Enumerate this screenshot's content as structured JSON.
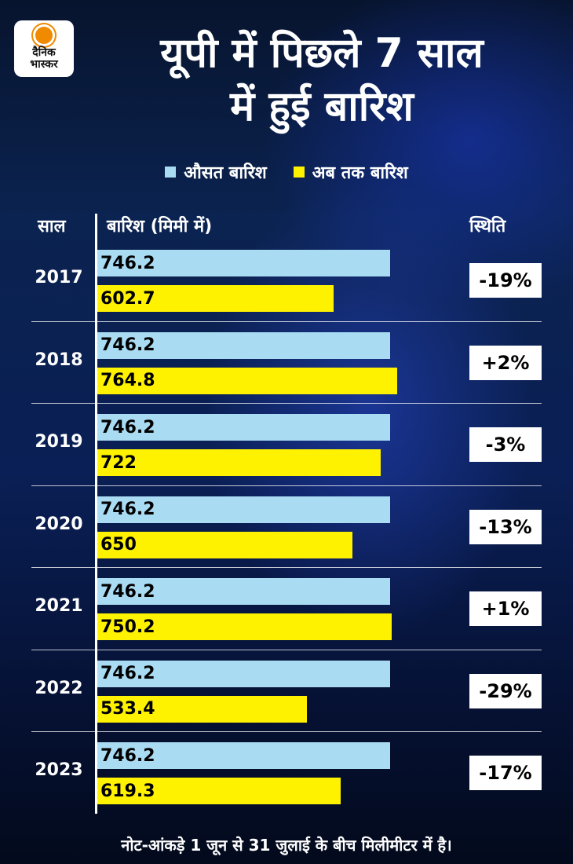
{
  "logo": {
    "line1": "दैनिक",
    "line2": "भास्कर"
  },
  "title_line1": "यूपी में पिछले 7 साल",
  "title_line2": "में हुई बारिश",
  "colors": {
    "average": "#a9dbf2",
    "current": "#fff200"
  },
  "chart_data": {
    "type": "bar",
    "categories": [
      "2017",
      "2018",
      "2019",
      "2020",
      "2021",
      "2022",
      "2023"
    ],
    "series": [
      {
        "name": "औसत बारिश",
        "values": [
          746.2,
          746.2,
          746.2,
          746.2,
          746.2,
          746.2,
          746.2
        ]
      },
      {
        "name": "अब तक बारिश",
        "values": [
          602.7,
          764.8,
          722,
          650,
          750.2,
          533.4,
          619.3
        ]
      }
    ],
    "status": [
      "-19%",
      "+2%",
      "-3%",
      "-13%",
      "+1%",
      "-29%",
      "-17%"
    ],
    "year_header": "साल",
    "value_header": "बारिश (मिमी में)",
    "status_header": "स्थिति"
  },
  "note": "नोट-आंकड़े 1 जून से 31 जुलाई के बीच मिलीमीटर में है।"
}
